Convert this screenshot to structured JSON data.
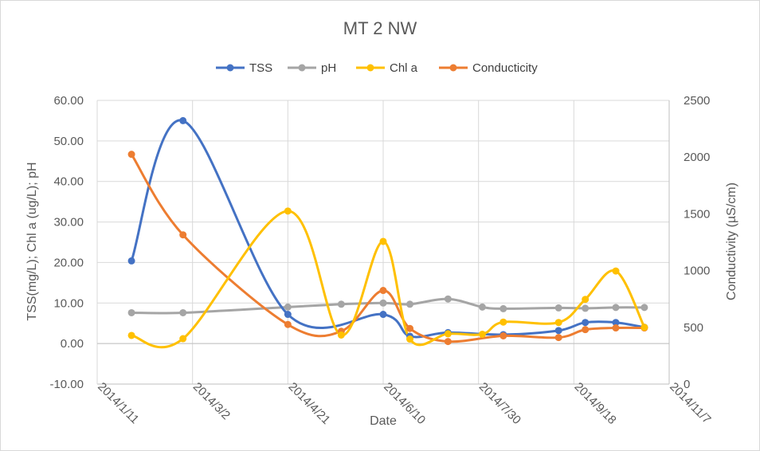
{
  "chart_data": {
    "type": "line",
    "title": "MT 2 NW",
    "xlabel": "Date",
    "ylabel": "TSS(mg/L); Chl a (ug/L); pH",
    "y2label": "Conductivity  (µS/cm)",
    "ylim": [
      -10,
      60
    ],
    "y2lim": [
      0,
      2500
    ],
    "x_tick_labels": [
      "2014/1/11",
      "2014/3/2",
      "2014/4/21",
      "2014/6/10",
      "2014/7/30",
      "2014/9/18",
      "2014/11/7"
    ],
    "y_tick_labels": [
      "60.00",
      "50.00",
      "40.00",
      "30.00",
      "20.00",
      "10.00",
      "0.00",
      "-10.00"
    ],
    "y2_tick_labels": [
      "2500",
      "2000",
      "1500",
      "1000",
      "500",
      "0"
    ],
    "grid": true,
    "legend_position": "top",
    "x": [
      "2014/1/29",
      "2014/2/25",
      "2014/4/21",
      "2014/5/19",
      "2014/6/10",
      "2014/6/24",
      "2014/7/14",
      "2014/8/1",
      "2014/8/12",
      "2014/9/10",
      "2014/9/24",
      "2014/10/10",
      "2014/10/25"
    ],
    "series": [
      {
        "name": "TSS",
        "axis": "left",
        "color": "#4472c4",
        "values": [
          20.4,
          55.0,
          7.2,
          null,
          7.2,
          1.8,
          2.7,
          null,
          2.2,
          3.2,
          5.2,
          5.2,
          4.0
        ]
      },
      {
        "name": "pH",
        "axis": "left",
        "color": "#a5a5a5",
        "values": [
          7.6,
          7.6,
          9.0,
          9.7,
          10.0,
          9.7,
          11.0,
          9.0,
          8.6,
          8.8,
          8.7,
          8.9,
          8.9
        ]
      },
      {
        "name": "Chl a",
        "axis": "left",
        "color": "#ffc000",
        "values": [
          2.0,
          1.2,
          32.7,
          2.1,
          25.2,
          1.1,
          2.4,
          2.3,
          5.3,
          5.2,
          10.9,
          17.9,
          4.0
        ]
      },
      {
        "name": "Conducticity",
        "axis": "right",
        "color": "#ed7d31",
        "values": [
          2025,
          1315,
          525,
          465,
          825,
          490,
          375,
          null,
          425,
          410,
          480,
          495,
          495
        ]
      }
    ]
  }
}
